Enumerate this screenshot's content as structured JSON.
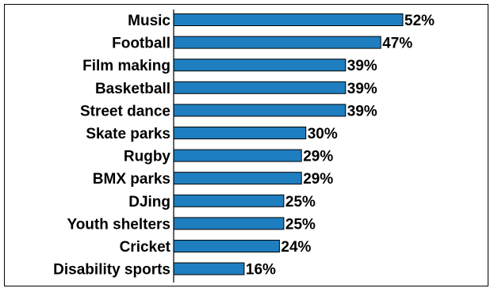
{
  "chart_data": {
    "type": "bar",
    "orientation": "horizontal",
    "categories": [
      "Music",
      "Football",
      "Film making",
      "Basketball",
      "Street dance",
      "Skate parks",
      "Rugby",
      "BMX parks",
      "DJing",
      "Youth shelters",
      "Cricket",
      "Disability sports"
    ],
    "values": [
      52,
      47,
      39,
      39,
      39,
      30,
      29,
      29,
      25,
      25,
      24,
      16
    ],
    "value_labels": [
      "52%",
      "47%",
      "39%",
      "39%",
      "39%",
      "30%",
      "29%",
      "29%",
      "25%",
      "25%",
      "24%",
      "16%"
    ],
    "value_suffix": "%",
    "title": "",
    "xlabel": "",
    "ylabel": "",
    "xlim": [
      0,
      57
    ],
    "grid": false,
    "legend": "none",
    "bar_color": "#1f7ec0",
    "bar_edge_color": "#000000"
  }
}
